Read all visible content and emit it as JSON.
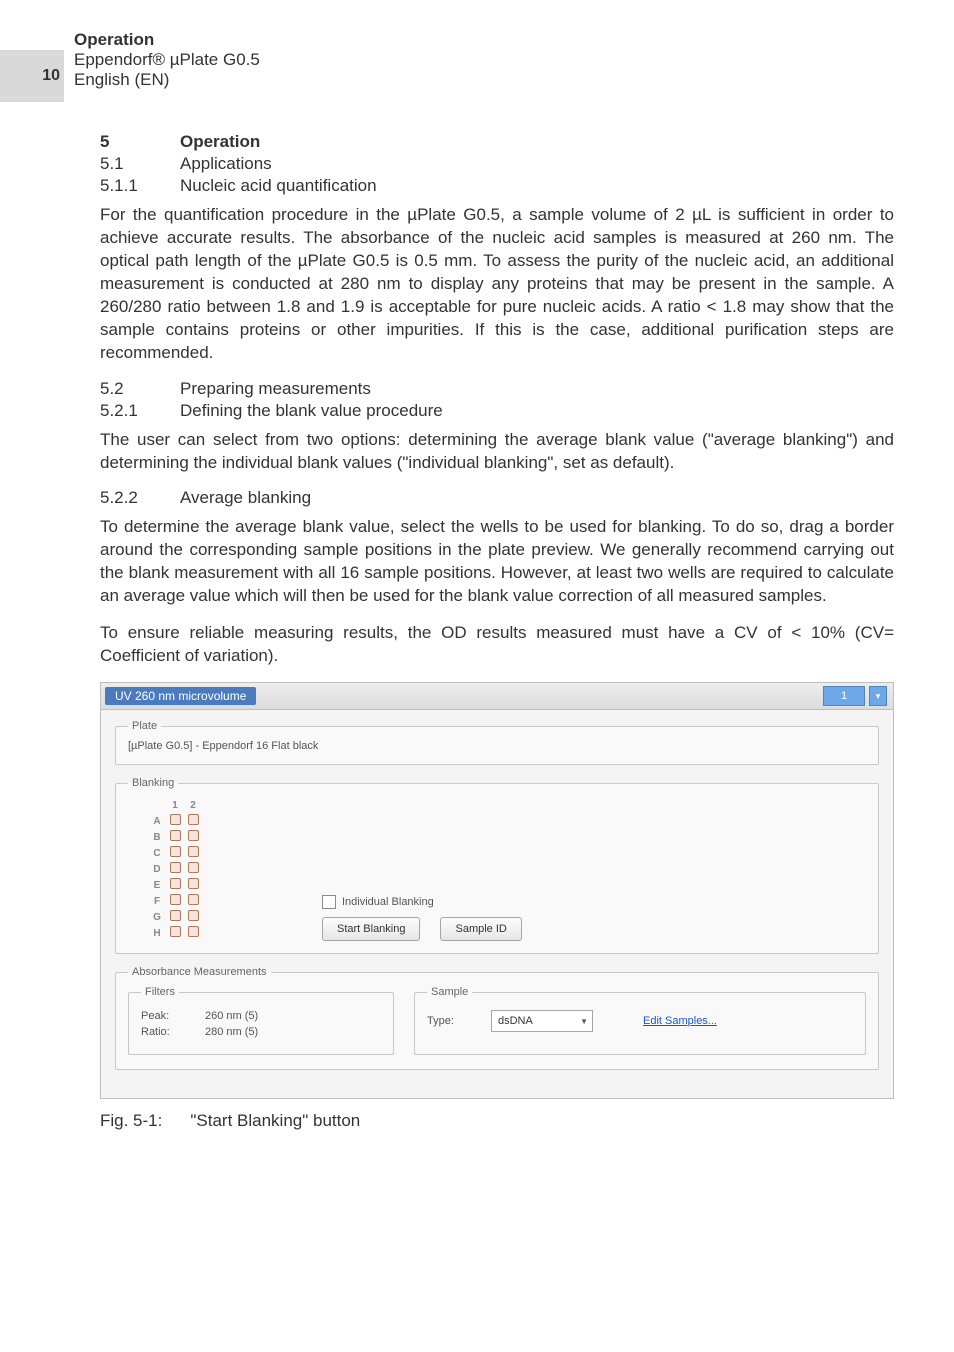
{
  "header": {
    "page_number": "10",
    "title": "Operation",
    "product": "Eppendorf® µPlate G0.5",
    "lang": "English (EN)"
  },
  "sec5": {
    "num": "5",
    "title": "Operation",
    "s51_num": "5.1",
    "s51_title": "Applications",
    "s511_num": "5.1.1",
    "s511_title": "Nucleic acid quantification",
    "para1": "For the quantification procedure in the µPlate G0.5, a sample volume of 2 µL is sufficient in order to achieve accurate results. The absorbance of the nucleic acid samples is measured at 260 nm. The optical path length of the µPlate G0.5 is 0.5 mm. To assess the purity of the nucleic acid, an additional measurement is conducted at 280 nm to display any proteins that may be present in the sample. A 260/280 ratio between 1.8 and 1.9 is acceptable for pure nucleic acids. A ratio < 1.8 may show that the sample contains proteins or other impurities. If this is the case, additional purification steps are recommended.",
    "s52_num": "5.2",
    "s52_title": "Preparing measurements",
    "s521_num": "5.2.1",
    "s521_title": "Defining the blank value procedure",
    "para2": "The user can select from two options: determining the average blank value (\"average blanking\") and determining the individual blank values (\"individual blanking\", set as default).",
    "s522_num": "5.2.2",
    "s522_title": "Average blanking",
    "para3": "To determine the average blank value, select the wells to be used for blanking. To do so, drag a border around the corresponding sample positions in the plate preview. We generally recommend carrying out the blank measurement with all 16 sample positions. However, at least two wells are required to calculate an average value which will then be used for the blank value correction of all measured samples.",
    "para4": "To ensure reliable measuring results, the OD results measured must have a CV of < 10% (CV= Coefficient of variation)."
  },
  "shot": {
    "title": "UV 260 nm microvolume",
    "tab_number": "1",
    "plate_legend": "Plate",
    "plate_value": "[µPlate G0.5] - Eppendorf 16 Flat black",
    "blanking_legend": "Blanking",
    "col_headers": [
      "1",
      "2"
    ],
    "row_headers": [
      "A",
      "B",
      "C",
      "D",
      "E",
      "F",
      "G",
      "H"
    ],
    "individual_label": "Individual Blanking",
    "start_blanking": "Start Blanking",
    "sample_id": "Sample ID",
    "abs_legend": "Absorbance Measurements",
    "filters_legend": "Filters",
    "peak_label": "Peak:",
    "peak_value": "260 nm (5)",
    "ratio_label": "Ratio:",
    "ratio_value": "280 nm (5)",
    "sample_legend": "Sample",
    "type_label": "Type:",
    "type_value": "dsDNA",
    "edit_samples": "Edit Samples..."
  },
  "caption": {
    "num": "Fig. 5-1:",
    "text": "\"Start Blanking\" button"
  }
}
